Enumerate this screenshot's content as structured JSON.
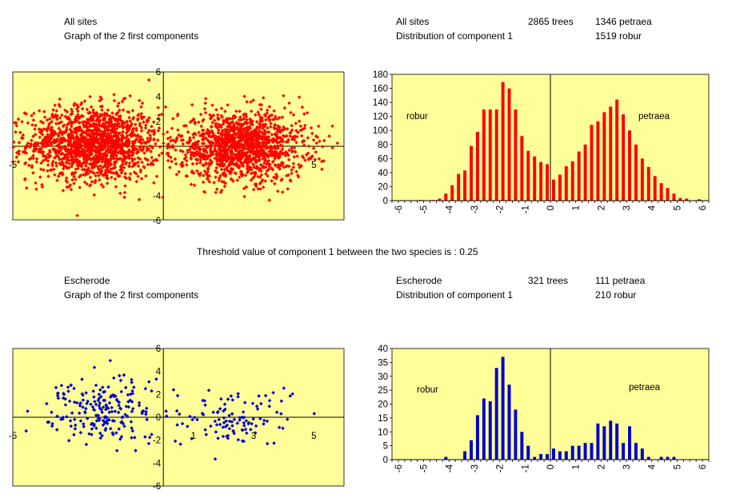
{
  "header_top_left": {
    "line1": "All sites",
    "line2": "Graph of the 2 first components"
  },
  "header_top_right": {
    "site": "All sites",
    "trees": "2865 trees",
    "petraea": "1346 petraea",
    "line2": "Distribution of component 1",
    "robur": "1519 robur"
  },
  "threshold_text": "Threshold value of component 1 between the two species is : 0.25",
  "header_bottom_left": {
    "line1": "Escherode",
    "line2": "Graph of the 2 first components"
  },
  "header_bottom_right": {
    "site": "Escherode",
    "trees": "321 trees",
    "petraea": "111 petraea",
    "line2": "Distribution of component 1",
    "robur": "210 robur"
  },
  "colors": {
    "plot_bg": "#FFFF99",
    "red": "#FF0000",
    "blue": "#0000CC"
  },
  "chart_data": [
    {
      "type": "scatter",
      "id": "scatter_all",
      "color": "red",
      "xlim": [
        -5,
        6
      ],
      "ylim": [
        -6,
        6
      ],
      "xticks": [
        -5,
        5
      ],
      "yticks": [
        -6,
        -4,
        2,
        4,
        6
      ],
      "clusters": [
        {
          "cx": -2.3,
          "cy": 0.2,
          "sx": 1.1,
          "sy": 1.5,
          "n": 1519
        },
        {
          "cx": 2.6,
          "cy": 0.0,
          "sx": 1.05,
          "sy": 1.4,
          "n": 1346
        }
      ],
      "note": "approximate point clouds"
    },
    {
      "type": "bar",
      "id": "hist_all",
      "color": "red",
      "ylim": [
        0,
        180
      ],
      "yticks": [
        0,
        20,
        40,
        60,
        80,
        100,
        120,
        140,
        160,
        180
      ],
      "xlim": [
        -6.25,
        6.25
      ],
      "xticks": [
        -6,
        -5,
        -4,
        -3,
        -2,
        -1,
        0,
        1,
        2,
        3,
        4,
        5,
        6
      ],
      "annotations": [
        "robur",
        "petraea"
      ],
      "x": [
        -5.125,
        -4.625,
        -4.375,
        -4.125,
        -3.875,
        -3.625,
        -3.375,
        -3.125,
        -2.875,
        -2.625,
        -2.375,
        -2.125,
        -1.875,
        -1.625,
        -1.375,
        -1.125,
        -0.875,
        -0.625,
        -0.375,
        -0.125,
        0.125,
        0.375,
        0.625,
        0.875,
        1.125,
        1.375,
        1.625,
        1.875,
        2.125,
        2.375,
        2.625,
        2.875,
        3.125,
        3.375,
        3.625,
        3.875,
        4.125,
        4.375,
        4.625,
        4.875,
        5.125,
        5.375,
        5.875
      ],
      "values": [
        1,
        1,
        3,
        10,
        22,
        38,
        43,
        78,
        98,
        130,
        130,
        130,
        169,
        160,
        130,
        92,
        71,
        63,
        55,
        52,
        30,
        37,
        49,
        56,
        70,
        80,
        108,
        113,
        126,
        134,
        144,
        123,
        100,
        80,
        60,
        48,
        35,
        25,
        18,
        10,
        4,
        3,
        2
      ]
    },
    {
      "type": "scatter",
      "id": "scatter_escherode",
      "color": "blue",
      "xlim": [
        -5,
        6
      ],
      "ylim": [
        -6,
        6
      ],
      "xticks": [
        -5,
        1,
        3,
        5
      ],
      "yticks": [
        -6,
        -4,
        -2,
        0,
        2,
        4,
        6
      ],
      "clusters": [
        {
          "cx": -1.9,
          "cy": 0.5,
          "sx": 0.9,
          "sy": 1.5,
          "n": 210
        },
        {
          "cx": 2.5,
          "cy": 0.0,
          "sx": 0.9,
          "sy": 1.2,
          "n": 111
        }
      ],
      "note": "approximate point clouds"
    },
    {
      "type": "bar",
      "id": "hist_escherode",
      "color": "blue",
      "ylim": [
        0,
        40
      ],
      "yticks": [
        0,
        5,
        10,
        15,
        20,
        25,
        30,
        35,
        40
      ],
      "xlim": [
        -6.25,
        6.25
      ],
      "xticks": [
        -6,
        -5,
        -4,
        -3,
        -2,
        -1,
        0,
        1,
        2,
        3,
        4,
        5,
        6
      ],
      "annotations": [
        "robur",
        "petraea"
      ],
      "x": [
        -4.125,
        -3.375,
        -3.125,
        -2.875,
        -2.625,
        -2.375,
        -2.125,
        -1.875,
        -1.625,
        -1.375,
        -1.125,
        -0.875,
        -0.625,
        -0.375,
        -0.125,
        0.125,
        0.375,
        0.625,
        0.875,
        1.125,
        1.375,
        1.625,
        1.875,
        2.125,
        2.375,
        2.625,
        2.875,
        3.125,
        3.375,
        3.625,
        3.875,
        4.125,
        4.375,
        4.625,
        4.875
      ],
      "values": [
        1,
        3,
        7,
        16,
        22,
        21,
        33,
        37,
        27,
        18,
        10,
        5,
        1,
        2,
        2,
        4,
        3,
        3,
        5,
        5,
        6,
        6,
        13,
        12,
        14,
        13,
        6,
        12,
        6,
        4,
        1,
        0,
        1,
        1,
        1
      ]
    }
  ]
}
